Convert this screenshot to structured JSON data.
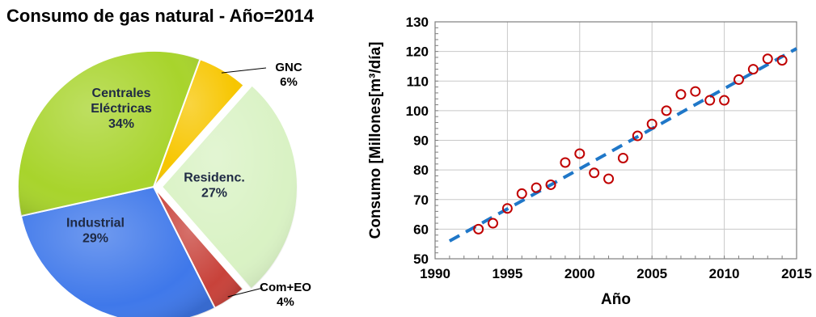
{
  "chart_data": [
    {
      "type": "pie",
      "title": "Consumo de gas natural - Año=2014",
      "slices": [
        {
          "label": "GNC",
          "value": 6,
          "pct_label": "6%",
          "color": "#f7c600"
        },
        {
          "label": "Residenc.",
          "value": 27,
          "pct_label": "27%",
          "color": "#d9f2c4"
        },
        {
          "label": "Com+EO",
          "value": 4,
          "pct_label": "4%",
          "color": "#c8423a"
        },
        {
          "label": "Industrial",
          "value": 29,
          "pct_label": "29%",
          "color": "#3f78ea"
        },
        {
          "label": "Centrales Eléctricas",
          "label_lines": [
            "Centrales",
            "Eléctricas"
          ],
          "value": 34,
          "pct_label": "34%",
          "color": "#a8d42c"
        }
      ]
    },
    {
      "type": "scatter",
      "xlabel": "Año",
      "ylabel": "Consumo [Millones[m³/día]",
      "xlim": [
        1990,
        2015
      ],
      "ylim": [
        50,
        130
      ],
      "xticks": [
        1990,
        1995,
        2000,
        2005,
        2010,
        2015
      ],
      "yticks": [
        50,
        60,
        70,
        80,
        90,
        100,
        110,
        120,
        130
      ],
      "grid": true,
      "series": [
        {
          "marker": "open-circle",
          "color": "#c00000",
          "x": [
            1993,
            1994,
            1995,
            1996,
            1997,
            1998,
            1999,
            2000,
            2001,
            2002,
            2003,
            2004,
            2005,
            2006,
            2007,
            2008,
            2009,
            2010,
            2011,
            2012,
            2013,
            2014
          ],
          "y": [
            60,
            62,
            67,
            72,
            74,
            75,
            82.5,
            85.5,
            79,
            77,
            84,
            91.5,
            95.5,
            100,
            105.5,
            106.5,
            103.5,
            103.5,
            110.5,
            114,
            117.5,
            117
          ]
        },
        {
          "style": "dashed-trend",
          "color": "#1f77c8",
          "x": [
            1991,
            2015
          ],
          "y": [
            56,
            121
          ]
        }
      ]
    }
  ]
}
